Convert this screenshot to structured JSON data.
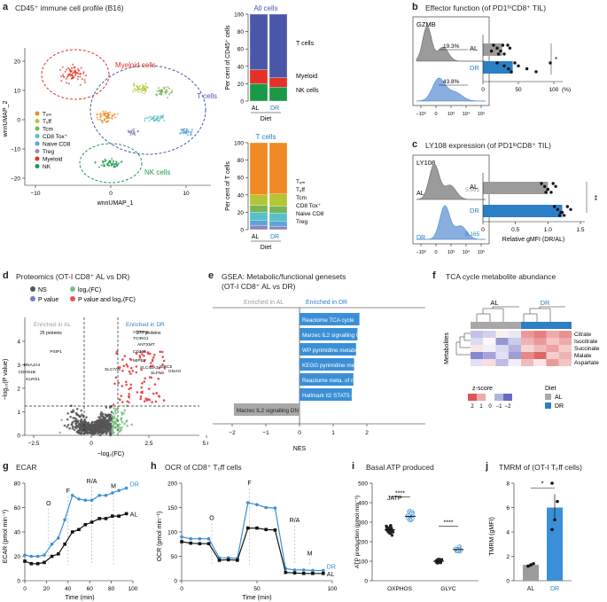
{
  "colors": {
    "al": "#9b9b9b",
    "dr": "#2a7fc7",
    "tcell": "#4a57a8",
    "myeloid": "#e63027",
    "nk": "#1a9a48",
    "blue": "#3a8fd6",
    "gray": "#a8a8a8",
    "sig": "#e84f55",
    "logfc": "#78c27a",
    "pval": "#6f7fc9",
    "ns": "#555555"
  },
  "figure": {
    "a": {
      "label": "a",
      "title": "CD45⁺ immune cell profile (B16)",
      "umap": {
        "xlabel": "wnnUMAP_1",
        "ylabel": "wnnUMAP_2",
        "xticks": [
          "−10",
          "0",
          "10"
        ],
        "yticks": [
          "20",
          "10",
          "0",
          "−10",
          "−20"
        ],
        "clusters": [
          "Myeloid cells",
          "T cells",
          "NK cells"
        ],
        "legend": [
          "Tₑₘ",
          "Tₑff",
          "Tcm",
          "CD8 Tox⁺",
          "Naive CD8",
          "Treg",
          "Myeloid",
          "NK"
        ]
      },
      "allcells": {
        "title": "All cells",
        "ylabel": "Per cent of CD45⁺ cells",
        "yticks": [
          "100",
          "80",
          "60",
          "40",
          "20",
          "0"
        ],
        "groups": [
          "AL",
          "DR"
        ],
        "xlabel": "Diet",
        "legend": [
          "T cells",
          "Myeloid",
          "NK cells"
        ]
      },
      "tcells": {
        "title": "T cells",
        "ylabel": "Per cent of T cells",
        "yticks": [
          "100",
          "80",
          "60",
          "40",
          "20",
          "0"
        ],
        "groups": [
          "AL",
          "DR"
        ],
        "xlabel": "Diet",
        "legend": [
          "Tₑₘ",
          "Tₑff",
          "Tcm",
          "CD8 Tox⁺",
          "Naive CD8",
          "Treg"
        ]
      }
    },
    "b": {
      "label": "b",
      "title": "Effector function (of PD1ʰⁱCD8⁺ TIL)",
      "marker": "GZMB",
      "gates": [
        "19.3%",
        "43.8%"
      ],
      "xticks": [
        "−10³",
        "0",
        "10³",
        "10⁴",
        "10⁵"
      ],
      "groups": [
        "AL",
        "DR"
      ],
      "bar_xticks": [
        "0",
        "50",
        "100",
        "(%)"
      ],
      "sig": "*"
    },
    "c": {
      "label": "c",
      "title": "LY108 expression (of PD1ˡᵒCD8⁺ TIL)",
      "marker": "LY108",
      "mfi": [
        "5,691",
        "8,165"
      ],
      "xticks": [
        "−10³",
        "0",
        "10³",
        "10⁴",
        "10⁵"
      ],
      "groups": [
        "AL",
        "DR"
      ],
      "bar_xticks": [
        "0",
        "0.5",
        "1.0",
        "1.5"
      ],
      "bar_xlabel": "Relative gMFI (DR/AL)",
      "sig": "**"
    },
    "d": {
      "label": "d",
      "title": "Proteomics (OT-I CD8⁺ AL vs DR)",
      "legend": [
        "NS",
        "log₂(FC)",
        "P value",
        "P value and log₂(FC)"
      ],
      "enriched_al": "Enriched in AL",
      "al_count": "25 proteins",
      "enriched_dr": "Enriched in DR",
      "dr_count": "277 proteins",
      "xlabel": "−log₂(FC)",
      "ylabel": "−log₁₀(P value)",
      "xticks": [
        "−2.5",
        "0",
        "2.5",
        "5.0"
      ],
      "yticks": [
        "0",
        "1",
        "2",
        "3",
        "4"
      ],
      "genes_left": [
        "PSIP1",
        "DNAJA4",
        "CDKN1B",
        "KLRG1"
      ],
      "genes_right": [
        "ATPAF2",
        "TCIRG1",
        "ANTXMT",
        "CD160",
        "MIPEP",
        "SLC43A3",
        "BIRC5",
        "SLFN8",
        "SLC7A5",
        "GNAO"
      ]
    },
    "e": {
      "label": "e",
      "title_line1": "GSEA: Metabolic/functional genesets",
      "title_line2": "(OT-I CD8⁺ AL vs DR)",
      "header_al": "Enriched in AL",
      "header_dr": "Enriched in DR",
      "xlabel": "NES",
      "xticks": [
        "−2",
        "−1",
        "0",
        "1",
        "2"
      ]
    },
    "f": {
      "label": "f",
      "title": "TCA cycle metabolite abundance",
      "groups": [
        "AL",
        "DR"
      ],
      "ylabel": "Metabolites",
      "rows": [
        "Citrate",
        "Isocitrate",
        "Succinate",
        "Malate",
        "Aspartate"
      ],
      "legend_title": "z-score",
      "legend_ticks": [
        "2",
        "1",
        "0",
        "−1",
        "−2"
      ],
      "diet_title": "Diet",
      "diet_items": [
        "AL",
        "DR"
      ]
    },
    "g": {
      "label": "g",
      "title": "ECAR",
      "ylabel": "ECAR (pmol min⁻¹)",
      "xlabel": "Time (min)",
      "xticks": [
        "0",
        "20",
        "40",
        "60",
        "80",
        "100"
      ],
      "yticks": [
        "0",
        "20",
        "40",
        "60",
        "80"
      ],
      "injections": [
        "O",
        "F",
        "R/A",
        "M"
      ],
      "series": [
        "DR",
        "AL"
      ]
    },
    "h": {
      "label": "h",
      "title": "OCR of CD8⁺ Tₑff cells",
      "ylabel": "OCR (pmol min⁻¹)",
      "xlabel": "Time (min)",
      "xticks": [
        "0",
        "50",
        "100"
      ],
      "yticks": [
        "0",
        "50",
        "100",
        "150",
        "200"
      ],
      "injections": [
        "O",
        "F",
        "R/A",
        "M"
      ],
      "series": [
        "DR",
        "AL"
      ]
    },
    "i": {
      "label": "i",
      "title": "Basal ATP produced",
      "ylabel": "ATP production (pmol min⁻¹)",
      "inner_label": "JATP",
      "yticks": [
        "0",
        "100",
        "200",
        "300",
        "400",
        "500"
      ],
      "groups": [
        "OXPHOS",
        "GLYC"
      ],
      "sig": [
        "****",
        "****"
      ]
    },
    "j": {
      "label": "j",
      "title": "TMRM of (OT-I Tₑff cells)",
      "ylabel": "TMRM (gMFI)",
      "yticks": [
        "0",
        "2",
        "4",
        "6",
        "8"
      ],
      "groups": [
        "AL",
        "DR"
      ],
      "sig": "*"
    }
  },
  "chart_data": [
    {
      "type": "bar",
      "id": "a_allcells",
      "title": "All cells",
      "categories": [
        "AL",
        "DR"
      ],
      "series": [
        {
          "name": "NK cells",
          "values": [
            20,
            16
          ]
        },
        {
          "name": "Myeloid",
          "values": [
            16,
            11
          ]
        },
        {
          "name": "T cells",
          "values": [
            64,
            73
          ]
        }
      ],
      "ylabel": "Per cent of CD45⁺ cells",
      "ylim": [
        0,
        100
      ]
    },
    {
      "type": "bar",
      "id": "a_tcells",
      "title": "T cells",
      "categories": [
        "AL",
        "DR"
      ],
      "series": [
        {
          "name": "Treg",
          "values": [
            5,
            4
          ]
        },
        {
          "name": "Naive CD8",
          "values": [
            6,
            6
          ]
        },
        {
          "name": "CD8 Tox⁺",
          "values": [
            9,
            9
          ]
        },
        {
          "name": "Tcm",
          "values": [
            8,
            8
          ]
        },
        {
          "name": "Tₑff",
          "values": [
            12,
            14
          ]
        },
        {
          "name": "Tₑₘ",
          "values": [
            60,
            59
          ]
        }
      ],
      "ylabel": "Per cent of T cells",
      "ylim": [
        0,
        100
      ]
    },
    {
      "type": "bar",
      "id": "b_bar",
      "title": "GZMB",
      "categories": [
        "AL",
        "DR"
      ],
      "values": [
        27,
        42
      ],
      "xlim": [
        0,
        100
      ],
      "points": [
        [
          15,
          20,
          25,
          30,
          35,
          38,
          12,
          22,
          28
        ],
        [
          20,
          30,
          36,
          40,
          45,
          50,
          62,
          75,
          95
        ]
      ]
    },
    {
      "type": "bar",
      "id": "c_bar",
      "title": "LY108",
      "categories": [
        "AL",
        "DR"
      ],
      "values": [
        1.0,
        1.22
      ],
      "xlim": [
        0,
        1.5
      ],
      "points": [
        [
          0.9,
          0.95,
          1.0,
          1.05,
          1.08,
          1.12,
          1.0,
          0.97
        ],
        [
          1.1,
          1.15,
          1.2,
          1.25,
          1.3,
          1.35,
          1.22,
          1.18
        ]
      ]
    },
    {
      "type": "bar",
      "id": "e_gsea",
      "xlabel": "NES",
      "xlim": [
        -2,
        2
      ],
      "categories": [
        "Reactome TCA cycle",
        "Marzec IL2 signalling UP",
        "WP pyrimidine metabolism",
        "KEGG pyrimidine meta.",
        "Reactome meta. of nucleo.",
        "Hallmark Il2 STAT5 sig.",
        "Marzec IL2 signalling DN"
      ],
      "values": [
        1.78,
        1.72,
        1.68,
        1.62,
        1.6,
        1.55,
        -1.95
      ]
    },
    {
      "type": "heatmap",
      "id": "f_tca",
      "rows": [
        "Citrate",
        "Isocitrate",
        "Succinate",
        "Malate",
        "Aspartate"
      ],
      "columns": [
        "AL1",
        "AL2",
        "AL3",
        "AL4",
        "DR1",
        "DR2",
        "DR3",
        "DR4"
      ],
      "values": [
        [
          -0.8,
          -0.6,
          0.2,
          -0.3,
          1.2,
          1.5,
          1.0,
          1.3
        ],
        [
          -0.5,
          0.1,
          -1.4,
          -0.7,
          0.9,
          1.2,
          0.7,
          1.0
        ],
        [
          0.3,
          -0.2,
          -0.5,
          -1.0,
          0.5,
          0.8,
          1.1,
          0.6
        ],
        [
          -1.6,
          -1.2,
          -0.4,
          -1.3,
          1.4,
          1.8,
          0.6,
          0.9
        ],
        [
          -0.4,
          0.4,
          -0.9,
          -0.2,
          0.8,
          0.3,
          1.2,
          0.7
        ]
      ]
    },
    {
      "type": "line",
      "id": "g_ecar",
      "xlabel": "Time (min)",
      "ylabel": "ECAR (pmol min⁻¹)",
      "xlim": [
        0,
        100
      ],
      "ylim": [
        0,
        80
      ],
      "x": [
        0,
        6,
        12,
        18,
        25,
        31,
        37,
        44,
        50,
        56,
        62,
        69,
        75,
        81,
        87,
        94
      ],
      "series": [
        {
          "name": "DR",
          "values": [
            21,
            20,
            20,
            21,
            30,
            35,
            50,
            70,
            67,
            66,
            66,
            70,
            70,
            72,
            74,
            76
          ]
        },
        {
          "name": "AL",
          "values": [
            16,
            14,
            14,
            15,
            20,
            22,
            30,
            40,
            42,
            46,
            48,
            51,
            51,
            53,
            53,
            55
          ]
        }
      ]
    },
    {
      "type": "line",
      "id": "h_ocr",
      "xlabel": "Time (min)",
      "ylabel": "OCR (pmol min⁻¹)",
      "xlim": [
        0,
        100
      ],
      "ylim": [
        0,
        200
      ],
      "x": [
        0,
        6,
        12,
        18,
        25,
        31,
        37,
        44,
        50,
        56,
        62,
        69,
        75,
        81,
        87,
        94
      ],
      "series": [
        {
          "name": "DR",
          "values": [
            90,
            86,
            86,
            86,
            47,
            47,
            46,
            160,
            156,
            150,
            149,
            25,
            22,
            22,
            21,
            21
          ]
        },
        {
          "name": "AL",
          "values": [
            80,
            77,
            76,
            76,
            42,
            43,
            42,
            108,
            108,
            105,
            104,
            17,
            16,
            15,
            15,
            15
          ]
        }
      ]
    },
    {
      "type": "scatter",
      "id": "i_atp",
      "categories": [
        "OXPHOS AL",
        "OXPHOS DR",
        "GLYC AL",
        "GLYC DR"
      ],
      "means": [
        262,
        330,
        100,
        160
      ],
      "ylim": [
        0,
        500
      ],
      "ylabel": "ATP production (pmol min⁻¹)"
    },
    {
      "type": "bar",
      "id": "j_tmrm",
      "categories": [
        "AL",
        "DR"
      ],
      "values": [
        1.3,
        6.0
      ],
      "errors": [
        0.15,
        1.1
      ],
      "ylim": [
        0,
        8
      ],
      "ylabel": "TMRM (gMFI)",
      "points": [
        [
          1.2,
          1.3,
          1.4,
          1.2
        ],
        [
          4.2,
          5.0,
          6.5,
          8.0
        ]
      ]
    }
  ]
}
